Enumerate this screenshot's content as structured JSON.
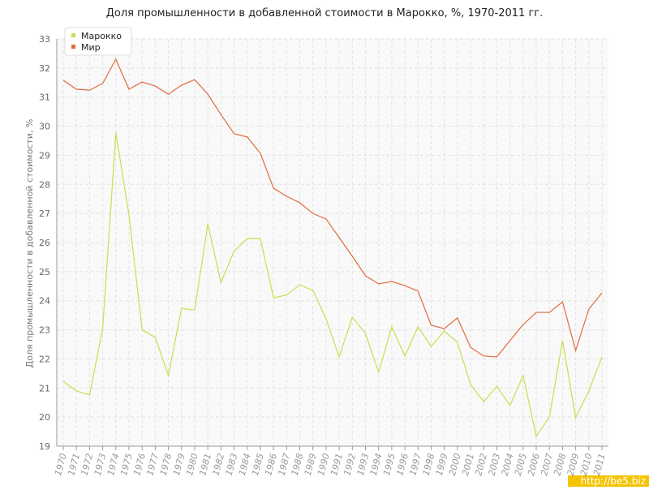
{
  "chart_data": {
    "type": "line",
    "title": "Доля промышленности в добавленной стоимости в Марокко, %, 1970-2011 гг.",
    "y_label": "Доля промышленности в добавленной стоимости, %",
    "watermark": "http://be5.biz",
    "categories": [
      "1970",
      "1971",
      "1972",
      "1973",
      "1974",
      "1975",
      "1976",
      "1977",
      "1978",
      "1979",
      "1980",
      "1981",
      "1982",
      "1983",
      "1984",
      "1985",
      "1986",
      "1987",
      "1988",
      "1989",
      "1990",
      "1991",
      "1992",
      "1993",
      "1994",
      "1995",
      "1996",
      "1997",
      "1998",
      "1999",
      "2000",
      "2001",
      "2002",
      "2003",
      "2004",
      "2005",
      "2006",
      "2007",
      "2008",
      "2009",
      "2010",
      "2011"
    ],
    "series": [
      {
        "name": "Марокко",
        "color": "#c5e04e",
        "values": [
          21.23,
          20.9,
          20.76,
          23.05,
          29.77,
          26.95,
          23.0,
          22.74,
          21.43,
          23.74,
          23.68,
          26.64,
          24.63,
          25.7,
          26.14,
          26.14,
          24.1,
          24.2,
          24.55,
          24.35,
          23.38,
          22.07,
          23.43,
          22.88,
          21.54,
          23.1,
          22.1,
          23.1,
          22.43,
          22.96,
          22.57,
          21.12,
          20.53,
          21.06,
          20.4,
          21.43,
          19.34,
          20.0,
          22.63,
          19.98,
          20.9,
          22.07
        ]
      },
      {
        "name": "Мир",
        "color": "#e06a3c",
        "values": [
          31.58,
          31.27,
          31.24,
          31.47,
          32.3,
          31.27,
          31.52,
          31.38,
          31.1,
          31.41,
          31.6,
          31.1,
          30.4,
          29.74,
          29.63,
          29.07,
          27.87,
          27.59,
          27.37,
          27.0,
          26.81,
          26.17,
          25.53,
          24.86,
          24.58,
          24.66,
          24.52,
          24.33,
          23.16,
          23.04,
          23.41,
          22.4,
          22.1,
          22.07,
          22.63,
          23.18,
          23.6,
          23.6,
          23.96,
          22.29,
          23.71,
          24.27
        ]
      }
    ],
    "ylim": [
      19,
      33
    ],
    "yticks": [
      19,
      20,
      21,
      22,
      23,
      24,
      25,
      26,
      27,
      28,
      29,
      30,
      31,
      32,
      33
    ],
    "grid": true,
    "legend": "top-left"
  }
}
